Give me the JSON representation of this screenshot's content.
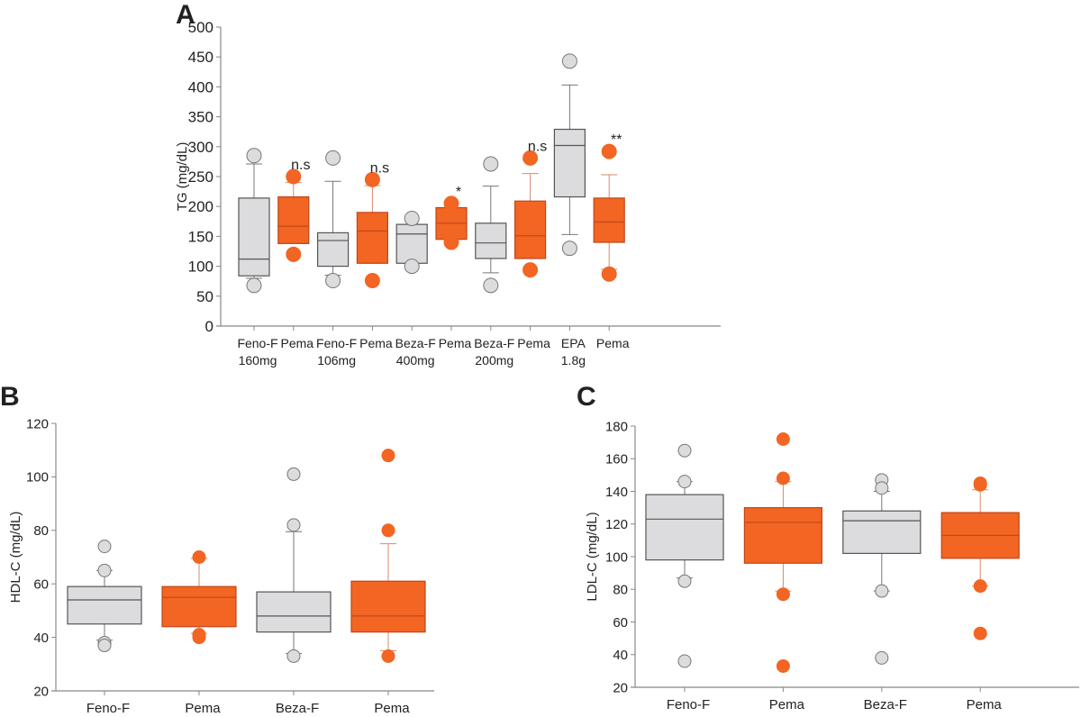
{
  "colors": {
    "control_fill": "#dcdcde",
    "control_stroke": "#555555",
    "pema_fill": "#f26522",
    "pema_stroke": "#c2461a",
    "axis": "#888888"
  },
  "chart_data": [
    {
      "panel": "A",
      "type": "box",
      "ylabel": "TG (mg/dL)",
      "ylim": [
        0,
        500
      ],
      "yticks": [
        0,
        50,
        100,
        150,
        200,
        250,
        300,
        350,
        400,
        450,
        500
      ],
      "categories": [
        [
          "Feno-F",
          "160mg"
        ],
        [
          "Pema"
        ],
        [
          "Feno-F",
          "106mg"
        ],
        [
          "Pema"
        ],
        [
          "Beza-F",
          "400mg"
        ],
        [
          "Pema"
        ],
        [
          "Beza-F",
          "200mg"
        ],
        [
          "Pema"
        ],
        [
          "EPA",
          "1.8g"
        ],
        [
          "Pema"
        ]
      ],
      "groups": [
        "control",
        "pema",
        "control",
        "pema",
        "control",
        "pema",
        "control",
        "pema",
        "control",
        "pema"
      ],
      "boxes": [
        {
          "q1": 84,
          "median": 112,
          "q3": 214,
          "whisker_low": 80,
          "whisker_high": 271,
          "outliers": [
            285,
            68
          ],
          "annotation": ""
        },
        {
          "q1": 138,
          "median": 167,
          "q3": 216,
          "whisker_low": 138,
          "whisker_high": 240,
          "outliers": [
            250,
            120
          ],
          "annotation": "n.s"
        },
        {
          "q1": 100,
          "median": 143,
          "q3": 156,
          "whisker_low": 85,
          "whisker_high": 242,
          "outliers": [
            281,
            76
          ],
          "annotation": ""
        },
        {
          "q1": 105,
          "median": 159,
          "q3": 190,
          "whisker_low": 105,
          "whisker_high": 235,
          "outliers": [
            245,
            76
          ],
          "annotation": "n.s"
        },
        {
          "q1": 105,
          "median": 154,
          "q3": 170,
          "whisker_low": 105,
          "whisker_high": 170,
          "outliers": [
            180,
            100
          ],
          "annotation": ""
        },
        {
          "q1": 145,
          "median": 172,
          "q3": 198,
          "whisker_low": 145,
          "whisker_high": 198,
          "outliers": [
            205,
            140
          ],
          "annotation": "*"
        },
        {
          "q1": 113,
          "median": 139,
          "q3": 172,
          "whisker_low": 89,
          "whisker_high": 234,
          "outliers": [
            271,
            68
          ],
          "annotation": ""
        },
        {
          "q1": 113,
          "median": 151,
          "q3": 209,
          "whisker_low": 113,
          "whisker_high": 255,
          "outliers": [
            281,
            94
          ],
          "annotation": "n.s"
        },
        {
          "q1": 216,
          "median": 302,
          "q3": 329,
          "whisker_low": 153,
          "whisker_high": 403,
          "outliers": [
            443,
            130
          ],
          "annotation": ""
        },
        {
          "q1": 140,
          "median": 174,
          "q3": 214,
          "whisker_low": 95,
          "whisker_high": 253,
          "outliers": [
            292,
            87
          ],
          "annotation": "**"
        }
      ]
    },
    {
      "panel": "B",
      "type": "box",
      "ylabel": "HDL-C (mg/dL)",
      "ylim": [
        20,
        120
      ],
      "yticks": [
        20,
        40,
        60,
        80,
        100,
        120
      ],
      "categories": [
        [
          "Feno-F"
        ],
        [
          "Pema"
        ],
        [
          "Beza-F"
        ],
        [
          "Pema"
        ]
      ],
      "groups": [
        "control",
        "pema",
        "control",
        "pema"
      ],
      "boxes": [
        {
          "q1": 45,
          "median": 54,
          "q3": 59,
          "whisker_low": 39,
          "whisker_high": 65,
          "outliers": [
            74,
            65,
            38,
            37
          ],
          "annotation": ""
        },
        {
          "q1": 44,
          "median": 55,
          "q3": 59,
          "whisker_low": 41.5,
          "whisker_high": 69.5,
          "outliers": [
            70,
            41,
            40
          ],
          "annotation": ""
        },
        {
          "q1": 42,
          "median": 48,
          "q3": 57,
          "whisker_low": 34,
          "whisker_high": 79.5,
          "outliers": [
            101,
            82,
            33
          ],
          "annotation": ""
        },
        {
          "q1": 42,
          "median": 48,
          "q3": 61,
          "whisker_low": 35,
          "whisker_high": 75,
          "outliers": [
            108,
            80,
            33
          ],
          "annotation": ""
        }
      ]
    },
    {
      "panel": "C",
      "type": "box",
      "ylabel": "LDL-C (mg/dL)",
      "ylim": [
        20,
        180
      ],
      "yticks": [
        20,
        40,
        60,
        80,
        100,
        120,
        140,
        160,
        180
      ],
      "categories": [
        [
          "Feno-F"
        ],
        [
          "Pema"
        ],
        [
          "Beza-F"
        ],
        [
          "Pema"
        ]
      ],
      "groups": [
        "control",
        "pema",
        "control",
        "pema"
      ],
      "boxes": [
        {
          "q1": 98,
          "median": 123,
          "q3": 138,
          "whisker_low": 87,
          "whisker_high": 146,
          "outliers": [
            165,
            146,
            85,
            36
          ],
          "annotation": ""
        },
        {
          "q1": 96,
          "median": 121,
          "q3": 130,
          "whisker_low": 79,
          "whisker_high": 146,
          "outliers": [
            172,
            148,
            77,
            33
          ],
          "annotation": ""
        },
        {
          "q1": 102,
          "median": 122,
          "q3": 128,
          "whisker_low": 79,
          "whisker_high": 140,
          "outliers": [
            147,
            142,
            79,
            38
          ],
          "annotation": ""
        },
        {
          "q1": 99,
          "median": 113,
          "q3": 127,
          "whisker_low": 82,
          "whisker_high": 141,
          "outliers": [
            145,
            144,
            82,
            53
          ],
          "annotation": ""
        }
      ]
    }
  ]
}
